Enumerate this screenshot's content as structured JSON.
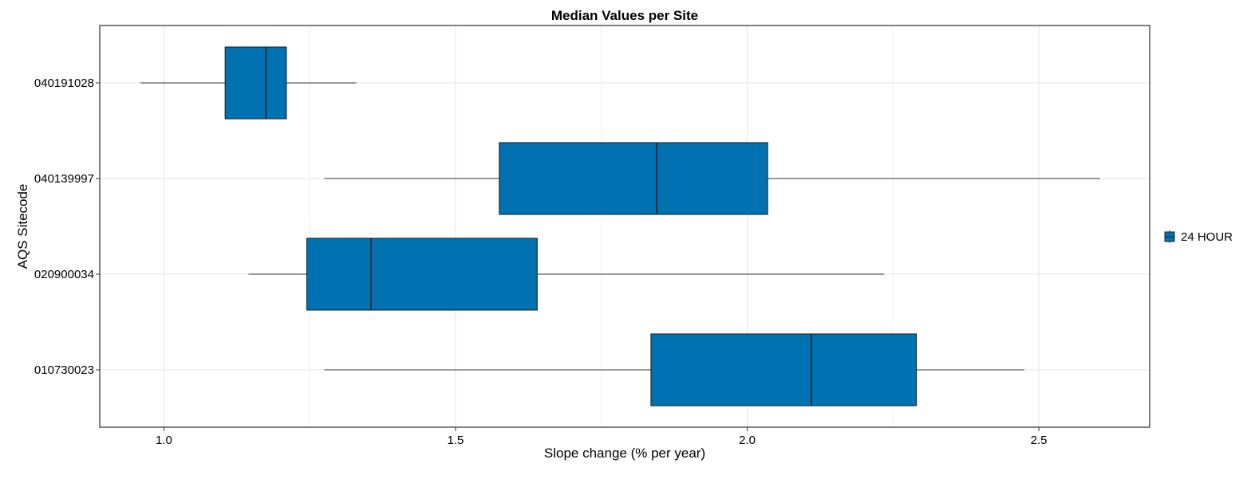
{
  "chart_data": {
    "type": "boxplot",
    "orientation": "horizontal",
    "title": "Median Values per Site",
    "xlabel": "Slope change (% per year)",
    "ylabel": "AQS Sitecode",
    "xlim": [
      0.89,
      2.69
    ],
    "x_ticks": [
      {
        "value": 1.0,
        "label": "1.0"
      },
      {
        "value": 1.5,
        "label": "1.5"
      },
      {
        "value": 2.0,
        "label": "2.0"
      },
      {
        "value": 2.5,
        "label": "2.5"
      }
    ],
    "x_minor_gridlines": [
      1.25,
      1.75,
      2.25
    ],
    "grid": true,
    "categories": [
      "040191028",
      "040139997",
      "020900034",
      "010730023"
    ],
    "series": [
      {
        "name": "24 HOUR",
        "color": "#0072B2",
        "boxes": [
          {
            "category": "040191028",
            "min": 0.96,
            "q1": 1.105,
            "median": 1.175,
            "q3": 1.21,
            "max": 1.33
          },
          {
            "category": "040139997",
            "min": 1.275,
            "q1": 1.575,
            "median": 1.845,
            "q3": 2.035,
            "max": 2.605
          },
          {
            "category": "020900034",
            "min": 1.145,
            "q1": 1.245,
            "median": 1.355,
            "q3": 1.64,
            "max": 2.235
          },
          {
            "category": "010730023",
            "min": 1.275,
            "q1": 1.835,
            "median": 2.11,
            "q3": 2.29,
            "max": 2.475
          }
        ]
      }
    ],
    "legend": {
      "position": "right",
      "entries": [
        "24 HOUR"
      ]
    }
  }
}
